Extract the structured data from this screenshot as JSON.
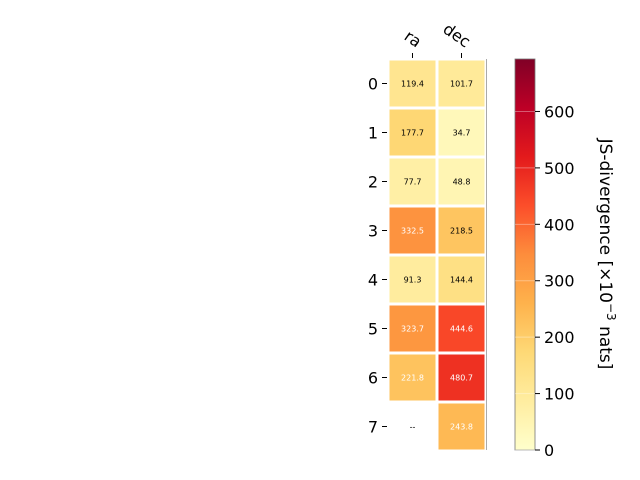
{
  "chart_data": {
    "type": "heatmap",
    "columns": [
      "ra",
      "dec"
    ],
    "rows": [
      "0",
      "1",
      "2",
      "3",
      "4",
      "5",
      "6",
      "7"
    ],
    "values": [
      [
        119.4,
        101.7
      ],
      [
        177.7,
        34.7
      ],
      [
        77.7,
        48.8
      ],
      [
        332.5,
        218.5
      ],
      [
        91.3,
        144.4
      ],
      [
        323.7,
        444.6
      ],
      [
        221.8,
        480.7
      ],
      [
        null,
        243.8
      ]
    ],
    "cell_labels": [
      [
        "119.4",
        "101.7"
      ],
      [
        "177.7",
        "34.7"
      ],
      [
        "77.7",
        "48.8"
      ],
      [
        "332.5",
        "218.5"
      ],
      [
        "91.3",
        "144.4"
      ],
      [
        "323.7",
        "444.6"
      ],
      [
        "221.8",
        "480.7"
      ],
      [
        "--",
        "243.8"
      ]
    ],
    "colorbar": {
      "label_main": "JS-divergence [×10",
      "label_exp": "−3",
      "label_unit": " nats]",
      "range": [
        0,
        693
      ],
      "ticks": [
        "0",
        "100",
        "200",
        "300",
        "400",
        "500",
        "600"
      ],
      "tick_values": [
        0,
        100,
        200,
        300,
        400,
        500,
        600
      ],
      "colormap": "YlOrRd"
    },
    "grid": false
  }
}
